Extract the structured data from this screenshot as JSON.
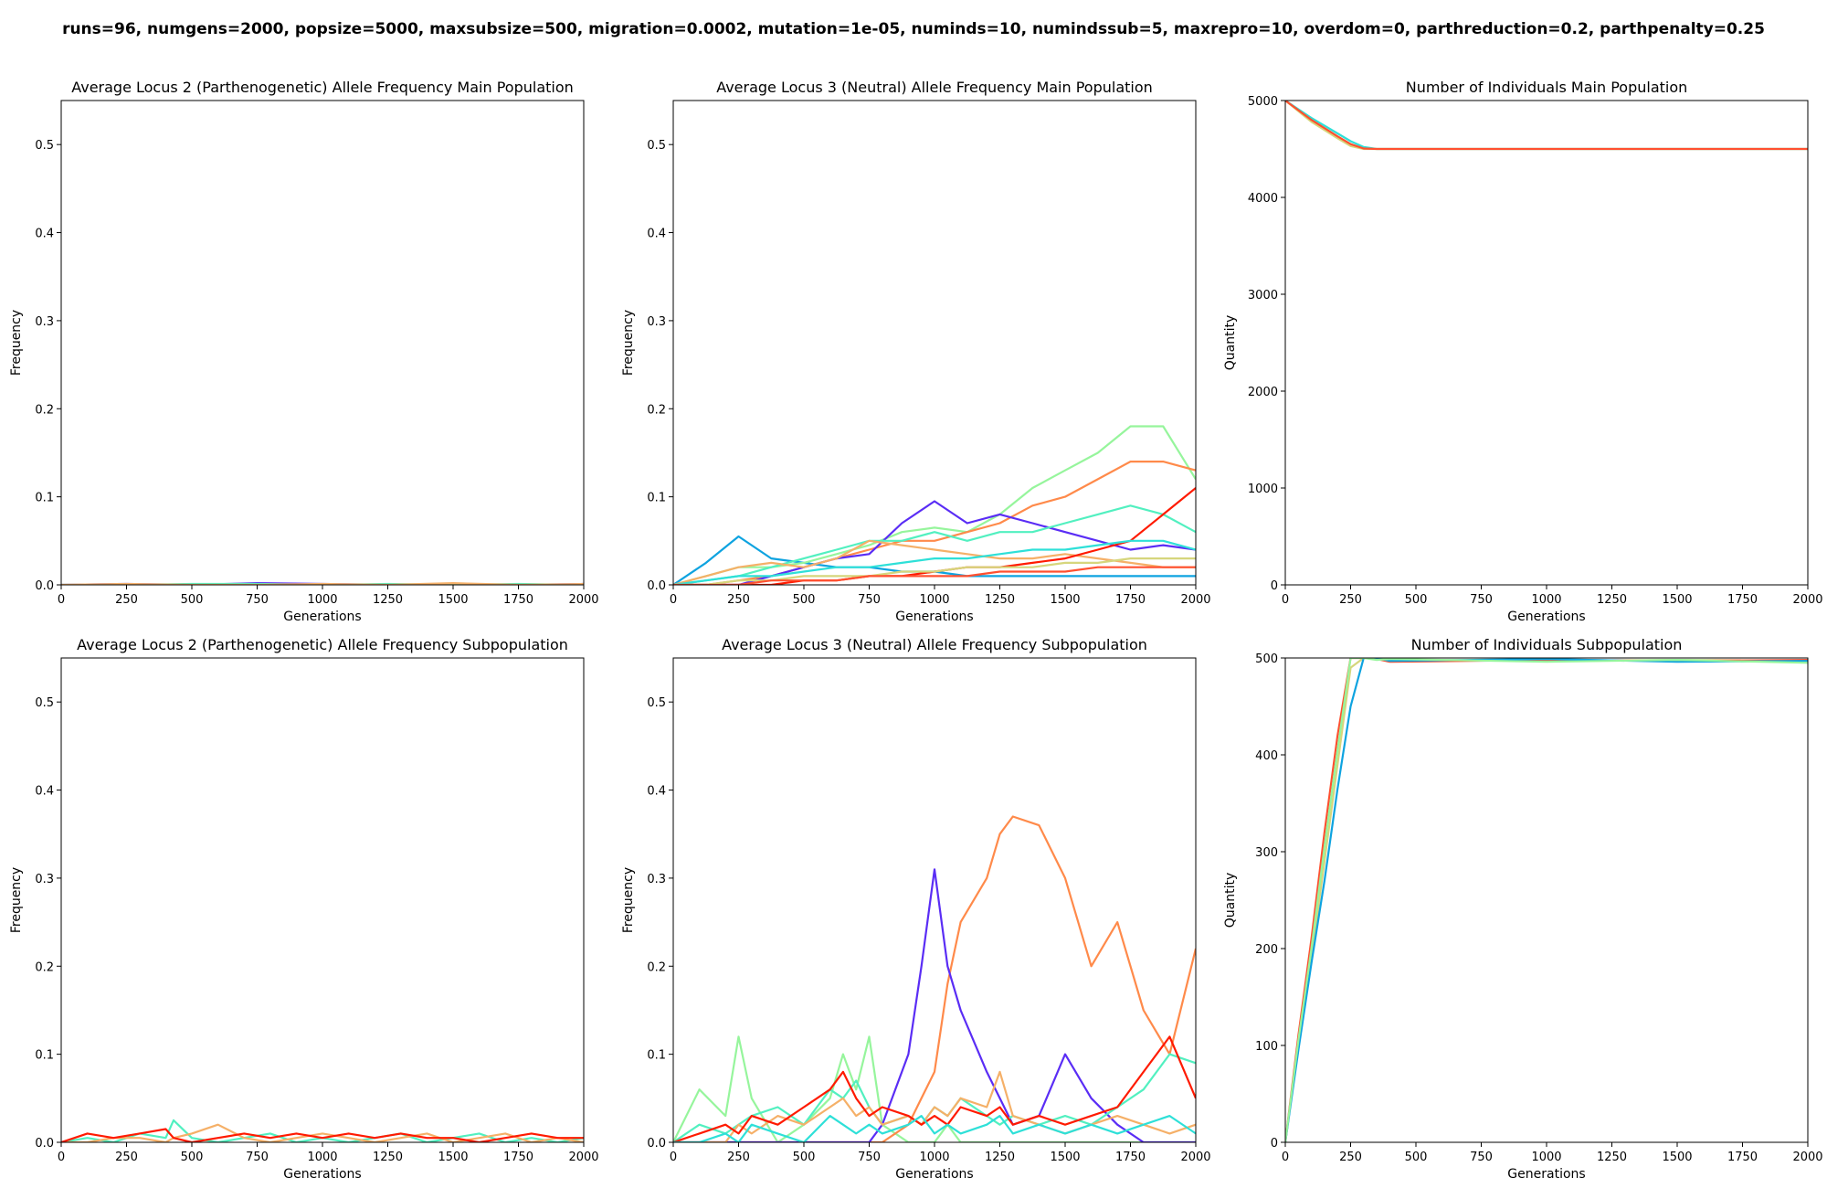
{
  "suptitle": "runs=96, numgens=2000, popsize=5000, maxsubsize=500, migration=0.0002, mutation=1e-05, numinds=10, numindssub=5, maxrepro=10, overdom=0, parthreduction=0.2, parthpenalty=0.25",
  "colors": {
    "series": [
      "#5a2df5",
      "#0ea3e0",
      "#2ee0d8",
      "#52f0c0",
      "#96f59c",
      "#d6d67c",
      "#f5b068",
      "#ff8a4a",
      "#ff5030",
      "#ff1a00"
    ]
  },
  "chart_data": [
    {
      "type": "line",
      "title": "Average Locus 2 (Parthenogenetic) Allele Frequency Main Population",
      "xlabel": "Generations",
      "ylabel": "Frequency",
      "xlim": [
        0,
        2000
      ],
      "ylim": [
        0,
        0.55
      ],
      "xticks": [
        0,
        250,
        500,
        750,
        1000,
        1250,
        1500,
        1750,
        2000
      ],
      "yticks": [
        0.0,
        0.1,
        0.2,
        0.3,
        0.4,
        0.5
      ],
      "ytick_labels": [
        "0.0",
        "0.1",
        "0.2",
        "0.3",
        "0.4",
        "0.5"
      ],
      "x": [
        0,
        250,
        500,
        750,
        1000,
        1250,
        1500,
        1750,
        2000
      ],
      "series": [
        {
          "values": [
            0,
            0.001,
            0.0,
            0.002,
            0.001,
            0.0,
            0.001,
            0.0,
            0.001
          ]
        },
        {
          "values": [
            0,
            0.0,
            0.001,
            0.001,
            0.0,
            0.001,
            0.0,
            0.001,
            0.0
          ]
        },
        {
          "values": [
            0,
            0.001,
            0.0,
            0.0,
            0.001,
            0.0,
            0.002,
            0.0,
            0.001
          ]
        }
      ]
    },
    {
      "type": "line",
      "title": "Average Locus 3 (Neutral) Allele Frequency Main Population",
      "xlabel": "Generations",
      "ylabel": "Frequency",
      "xlim": [
        0,
        2000
      ],
      "ylim": [
        0,
        0.55
      ],
      "xticks": [
        0,
        250,
        500,
        750,
        1000,
        1250,
        1500,
        1750,
        2000
      ],
      "yticks": [
        0.0,
        0.1,
        0.2,
        0.3,
        0.4,
        0.5
      ],
      "ytick_labels": [
        "0.0",
        "0.1",
        "0.2",
        "0.3",
        "0.4",
        "0.5"
      ],
      "x": [
        0,
        125,
        250,
        375,
        500,
        625,
        750,
        875,
        1000,
        1125,
        1250,
        1375,
        1500,
        1625,
        1750,
        1875,
        2000
      ],
      "series": [
        {
          "values": [
            0,
            0.025,
            0.055,
            0.03,
            0.025,
            0.02,
            0.02,
            0.015,
            0.015,
            0.01,
            0.01,
            0.01,
            0.01,
            0.01,
            0.01,
            0.01,
            0.01
          ]
        },
        {
          "values": [
            0,
            0.01,
            0.02,
            0.02,
            0.025,
            0.035,
            0.045,
            0.06,
            0.065,
            0.06,
            0.08,
            0.11,
            0.13,
            0.15,
            0.18,
            0.18,
            0.12
          ]
        },
        {
          "values": [
            0,
            0.0,
            0.005,
            0.01,
            0.02,
            0.03,
            0.04,
            0.05,
            0.05,
            0.06,
            0.07,
            0.09,
            0.1,
            0.12,
            0.14,
            0.14,
            0.13
          ]
        },
        {
          "values": [
            0,
            0.0,
            0.0,
            0.01,
            0.02,
            0.03,
            0.035,
            0.07,
            0.095,
            0.07,
            0.08,
            0.07,
            0.06,
            0.05,
            0.04,
            0.045,
            0.04
          ]
        },
        {
          "values": [
            0,
            0.005,
            0.01,
            0.02,
            0.03,
            0.04,
            0.05,
            0.05,
            0.06,
            0.05,
            0.06,
            0.06,
            0.07,
            0.08,
            0.09,
            0.08,
            0.06
          ]
        },
        {
          "values": [
            0,
            0.01,
            0.02,
            0.025,
            0.02,
            0.03,
            0.05,
            0.045,
            0.04,
            0.035,
            0.03,
            0.03,
            0.035,
            0.03,
            0.025,
            0.02,
            0.02
          ]
        },
        {
          "values": [
            0,
            0.0,
            0.0,
            0.0,
            0.005,
            0.005,
            0.01,
            0.01,
            0.015,
            0.02,
            0.02,
            0.025,
            0.03,
            0.04,
            0.05,
            0.08,
            0.11
          ]
        },
        {
          "values": [
            0,
            0.005,
            0.01,
            0.01,
            0.015,
            0.02,
            0.02,
            0.025,
            0.03,
            0.03,
            0.035,
            0.04,
            0.04,
            0.045,
            0.05,
            0.05,
            0.04
          ]
        },
        {
          "values": [
            0,
            0.0,
            0.005,
            0.005,
            0.01,
            0.01,
            0.01,
            0.015,
            0.015,
            0.02,
            0.02,
            0.02,
            0.025,
            0.025,
            0.03,
            0.03,
            0.03
          ]
        },
        {
          "values": [
            0,
            0.0,
            0.0,
            0.005,
            0.005,
            0.005,
            0.01,
            0.01,
            0.01,
            0.01,
            0.015,
            0.015,
            0.015,
            0.02,
            0.02,
            0.02,
            0.02
          ]
        }
      ]
    },
    {
      "type": "line",
      "title": "Number of Individuals Main Population",
      "xlabel": "Generations",
      "ylabel": "Quantity",
      "xlim": [
        0,
        2000
      ],
      "ylim": [
        0,
        5000
      ],
      "xticks": [
        0,
        250,
        500,
        750,
        1000,
        1250,
        1500,
        1750,
        2000
      ],
      "yticks": [
        0,
        1000,
        2000,
        3000,
        4000,
        5000
      ],
      "ytick_labels": [
        "0",
        "1000",
        "2000",
        "3000",
        "4000",
        "5000"
      ],
      "x": [
        0,
        100,
        200,
        250,
        300,
        350,
        500,
        1000,
        1500,
        2000
      ],
      "series": [
        {
          "values": [
            5000,
            4820,
            4660,
            4580,
            4520,
            4500,
            4500,
            4500,
            4500,
            4500
          ]
        },
        {
          "values": [
            5000,
            4780,
            4610,
            4530,
            4500,
            4500,
            4500,
            4500,
            4500,
            4500
          ]
        },
        {
          "values": [
            5000,
            4800,
            4630,
            4550,
            4505,
            4500,
            4500,
            4500,
            4500,
            4500
          ]
        }
      ]
    },
    {
      "type": "line",
      "title": "Average Locus 2 (Parthenogenetic) Allele Frequency Subpopulation",
      "xlabel": "Generations",
      "ylabel": "Frequency",
      "xlim": [
        0,
        2000
      ],
      "ylim": [
        0,
        0.55
      ],
      "xticks": [
        0,
        250,
        500,
        750,
        1000,
        1250,
        1500,
        1750,
        2000
      ],
      "yticks": [
        0.0,
        0.1,
        0.2,
        0.3,
        0.4,
        0.5
      ],
      "ytick_labels": [
        "0.0",
        "0.1",
        "0.2",
        "0.3",
        "0.4",
        "0.5"
      ],
      "x": [
        0,
        100,
        200,
        300,
        400,
        430,
        500,
        600,
        700,
        800,
        900,
        1000,
        1100,
        1200,
        1300,
        1400,
        1500,
        1600,
        1700,
        1800,
        1900,
        2000
      ],
      "series": [
        {
          "values": [
            0,
            0.005,
            0.0,
            0.01,
            0.005,
            0.025,
            0.005,
            0.0,
            0.005,
            0.01,
            0.0,
            0.005,
            0.0,
            0.005,
            0.01,
            0.0,
            0.005,
            0.01,
            0.0,
            0.005,
            0.0,
            0.005
          ]
        },
        {
          "values": [
            0,
            0.0,
            0.005,
            0.005,
            0.0,
            0.005,
            0.01,
            0.02,
            0.005,
            0.0,
            0.005,
            0.01,
            0.005,
            0.0,
            0.005,
            0.01,
            0.0,
            0.005,
            0.01,
            0.0,
            0.005,
            0.0
          ]
        },
        {
          "values": [
            0,
            0.01,
            0.005,
            0.01,
            0.015,
            0.005,
            0.0,
            0.005,
            0.01,
            0.005,
            0.01,
            0.005,
            0.01,
            0.005,
            0.01,
            0.005,
            0.005,
            0.0,
            0.005,
            0.01,
            0.005,
            0.005
          ]
        }
      ]
    },
    {
      "type": "line",
      "title": "Average Locus 3 (Neutral) Allele Frequency Subpopulation",
      "xlabel": "Generations",
      "ylabel": "Frequency",
      "xlim": [
        0,
        2000
      ],
      "ylim": [
        0,
        0.55
      ],
      "xticks": [
        0,
        250,
        500,
        750,
        1000,
        1250,
        1500,
        1750,
        2000
      ],
      "yticks": [
        0.0,
        0.1,
        0.2,
        0.3,
        0.4,
        0.5
      ],
      "ytick_labels": [
        "0.0",
        "0.1",
        "0.2",
        "0.3",
        "0.4",
        "0.5"
      ],
      "x": [
        0,
        100,
        200,
        250,
        300,
        400,
        500,
        600,
        650,
        700,
        750,
        800,
        900,
        950,
        1000,
        1050,
        1100,
        1200,
        1250,
        1300,
        1400,
        1500,
        1600,
        1700,
        1800,
        1900,
        2000
      ],
      "series": [
        {
          "values": [
            0,
            0.06,
            0.03,
            0.12,
            0.05,
            0.0,
            0.02,
            0.05,
            0.1,
            0.06,
            0.12,
            0.02,
            0.0,
            0.0,
            0.0,
            0.02,
            0.0,
            0.0,
            0.0,
            0.0,
            0.0,
            0.0,
            0.0,
            0.0,
            0.0,
            0.0,
            0.0
          ]
        },
        {
          "values": [
            0,
            0.0,
            0.0,
            0.0,
            0.0,
            0.0,
            0.0,
            0.0,
            0.0,
            0.0,
            0.0,
            0.0,
            0.02,
            0.05,
            0.08,
            0.18,
            0.25,
            0.3,
            0.35,
            0.37,
            0.36,
            0.3,
            0.2,
            0.25,
            0.15,
            0.1,
            0.22
          ]
        },
        {
          "values": [
            0,
            0.0,
            0.0,
            0.0,
            0.0,
            0.0,
            0.0,
            0.0,
            0.0,
            0.0,
            0.0,
            0.02,
            0.1,
            0.2,
            0.31,
            0.2,
            0.15,
            0.08,
            0.05,
            0.02,
            0.03,
            0.1,
            0.05,
            0.02,
            0.0,
            0.0,
            0.0
          ]
        },
        {
          "values": [
            0,
            0.02,
            0.01,
            0.02,
            0.03,
            0.04,
            0.02,
            0.06,
            0.05,
            0.07,
            0.04,
            0.02,
            0.03,
            0.02,
            0.04,
            0.03,
            0.05,
            0.03,
            0.02,
            0.03,
            0.02,
            0.03,
            0.02,
            0.04,
            0.06,
            0.1,
            0.09
          ]
        },
        {
          "values": [
            0,
            0.0,
            0.0,
            0.02,
            0.01,
            0.03,
            0.02,
            0.04,
            0.05,
            0.03,
            0.04,
            0.02,
            0.03,
            0.02,
            0.04,
            0.03,
            0.05,
            0.04,
            0.08,
            0.03,
            0.02,
            0.01,
            0.02,
            0.03,
            0.02,
            0.01,
            0.02
          ]
        },
        {
          "values": [
            0,
            0.01,
            0.02,
            0.01,
            0.03,
            0.02,
            0.04,
            0.06,
            0.08,
            0.05,
            0.03,
            0.04,
            0.03,
            0.02,
            0.03,
            0.02,
            0.04,
            0.03,
            0.04,
            0.02,
            0.03,
            0.02,
            0.03,
            0.04,
            0.08,
            0.12,
            0.05
          ]
        },
        {
          "values": [
            0,
            0.0,
            0.01,
            0.0,
            0.02,
            0.01,
            0.0,
            0.03,
            0.02,
            0.01,
            0.02,
            0.01,
            0.02,
            0.03,
            0.01,
            0.02,
            0.01,
            0.02,
            0.03,
            0.01,
            0.02,
            0.01,
            0.02,
            0.01,
            0.02,
            0.03,
            0.01
          ]
        }
      ]
    },
    {
      "type": "line",
      "title": "Number of Individuals Subpopulation",
      "xlabel": "Generations",
      "ylabel": "Quantity",
      "xlim": [
        0,
        2000
      ],
      "ylim": [
        0,
        500
      ],
      "xticks": [
        0,
        250,
        500,
        750,
        1000,
        1250,
        1500,
        1750,
        2000
      ],
      "yticks": [
        0,
        100,
        200,
        300,
        400,
        500
      ],
      "ytick_labels": [
        "0",
        "100",
        "200",
        "300",
        "400",
        "500"
      ],
      "x": [
        0,
        50,
        100,
        150,
        200,
        250,
        300,
        350,
        400,
        1000,
        1500,
        2000
      ],
      "series": [
        {
          "values": [
            0,
            100,
            190,
            290,
            390,
            490,
            500,
            500,
            498,
            497,
            498,
            497
          ]
        },
        {
          "values": [
            0,
            110,
            210,
            320,
            420,
            500,
            500,
            499,
            496,
            498,
            497,
            498
          ]
        },
        {
          "values": [
            0,
            95,
            185,
            270,
            365,
            450,
            500,
            500,
            497,
            499,
            496,
            497
          ]
        },
        {
          "values": [
            0,
            105,
            200,
            305,
            405,
            500,
            500,
            498,
            499,
            496,
            498,
            495
          ]
        }
      ]
    }
  ]
}
